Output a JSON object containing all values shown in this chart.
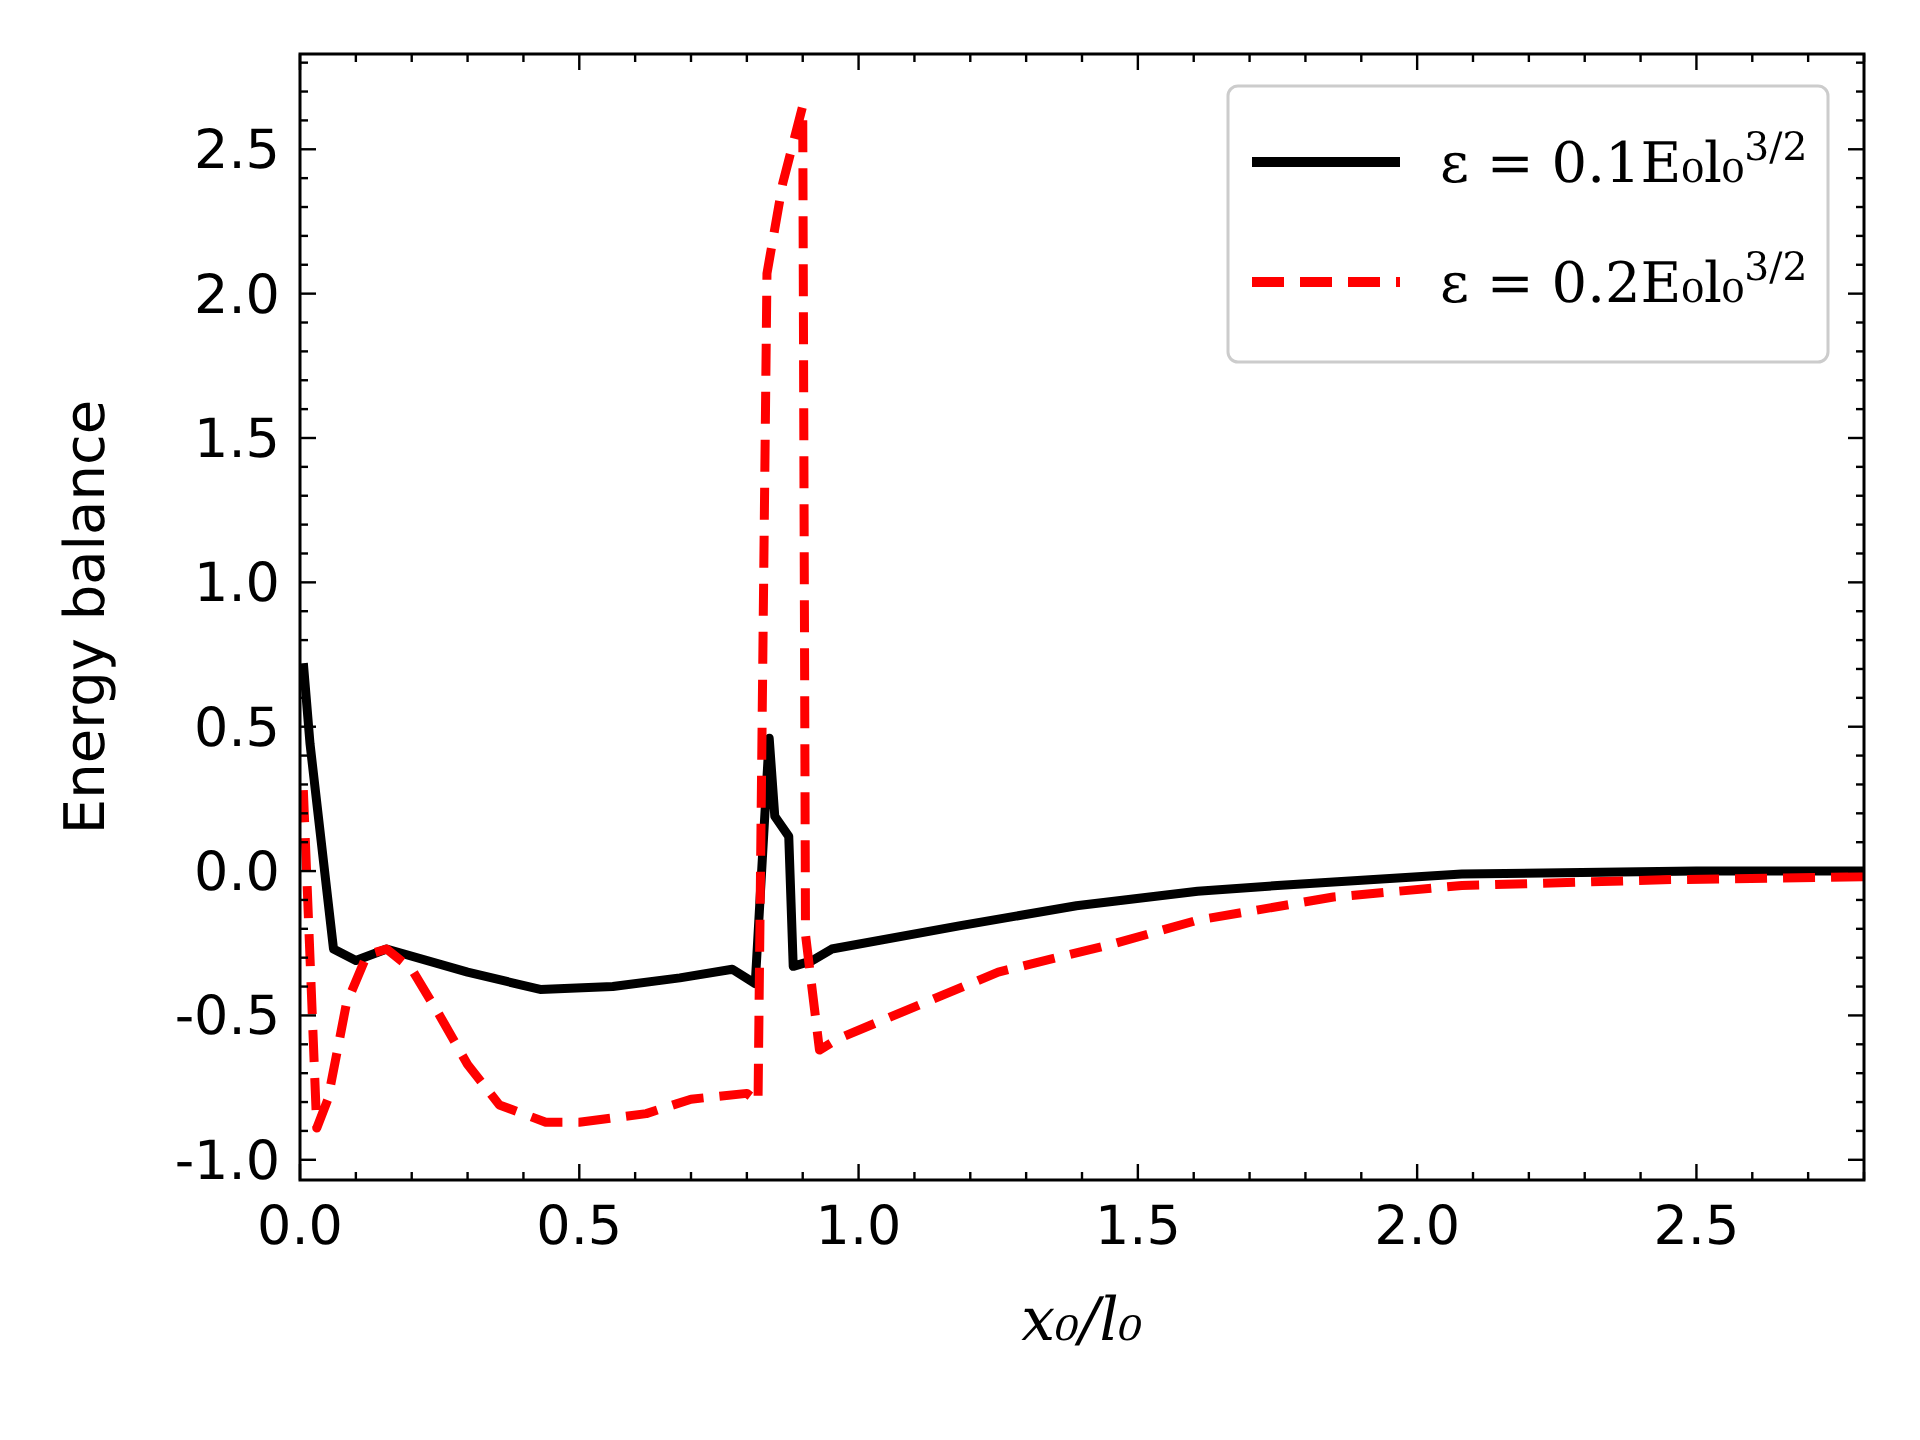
{
  "chart_data": {
    "type": "line",
    "xlabel": "x₀/l₀",
    "ylabel": "Energy balance",
    "xlim": [
      0,
      2.8
    ],
    "ylim": [
      -1.07,
      2.83
    ],
    "xticks": [
      {
        "value": 0,
        "label": "0.0"
      },
      {
        "value": 0.1,
        "label": null
      },
      {
        "value": 0.2,
        "label": null
      },
      {
        "value": 0.3,
        "label": null
      },
      {
        "value": 0.4,
        "label": null
      },
      0.5,
      {
        "value": 0.6,
        "label": null
      },
      {
        "value": 0.7,
        "label": null
      },
      {
        "value": 0.8,
        "label": null
      },
      {
        "value": 0.9,
        "label": null
      },
      {
        "value": 1,
        "label": "1.0"
      },
      {
        "value": 1.1,
        "label": null
      },
      {
        "value": 1.2,
        "label": null
      },
      {
        "value": 1.3,
        "label": null
      },
      {
        "value": 1.4,
        "label": null
      },
      1.5,
      {
        "value": 1.6,
        "label": null
      },
      {
        "value": 1.7,
        "label": null
      },
      {
        "value": 1.8,
        "label": null
      },
      {
        "value": 1.9,
        "label": null
      },
      {
        "value": 2,
        "label": "2.0"
      },
      {
        "value": 2.1,
        "label": null
      },
      {
        "value": 2.2,
        "label": null
      },
      {
        "value": 2.3,
        "label": null
      },
      {
        "value": 2.4,
        "label": null
      },
      2.5,
      {
        "value": 2.6,
        "label": null
      },
      {
        "value": 2.7,
        "label": null
      },
      {
        "value": 2.8,
        "label": null
      }
    ],
    "yticks": [
      {
        "value": -1,
        "label": "-1.0"
      },
      {
        "value": -0.9,
        "label": null
      },
      {
        "value": -0.8,
        "label": null
      },
      {
        "value": -0.7,
        "label": null
      },
      {
        "value": -0.6,
        "label": null
      },
      -0.5,
      {
        "value": -0.4,
        "label": null
      },
      {
        "value": -0.3,
        "label": null
      },
      {
        "value": -0.2,
        "label": null
      },
      {
        "value": -0.1,
        "label": null
      },
      {
        "value": 0,
        "label": "0.0"
      },
      {
        "value": 0.1,
        "label": null
      },
      {
        "value": 0.2,
        "label": null
      },
      {
        "value": 0.3,
        "label": null
      },
      {
        "value": 0.4,
        "label": null
      },
      0.5,
      {
        "value": 0.6,
        "label": null
      },
      {
        "value": 0.7,
        "label": null
      },
      {
        "value": 0.8,
        "label": null
      },
      {
        "value": 0.9,
        "label": null
      },
      {
        "value": 1,
        "label": "1.0"
      },
      {
        "value": 1.1,
        "label": null
      },
      {
        "value": 1.2,
        "label": null
      },
      {
        "value": 1.3,
        "label": null
      },
      {
        "value": 1.4,
        "label": null
      },
      1.5,
      {
        "value": 1.6,
        "label": null
      },
      {
        "value": 1.7,
        "label": null
      },
      {
        "value": 1.8,
        "label": null
      },
      {
        "value": 1.9,
        "label": null
      },
      {
        "value": 2,
        "label": "2.0"
      },
      {
        "value": 2.1,
        "label": null
      },
      {
        "value": 2.2,
        "label": null
      },
      {
        "value": 2.3,
        "label": null
      },
      {
        "value": 2.4,
        "label": null
      },
      2.5,
      {
        "value": 2.6,
        "label": null
      },
      {
        "value": 2.7,
        "label": null
      },
      {
        "value": 2.8,
        "label": null
      }
    ],
    "legend": "top right",
    "grid": false,
    "series": [
      {
        "name": "ε = 0.1E₀l₀$^{3/2}$",
        "color": "#000000",
        "line_style": "solid",
        "x": [
          0.006,
          0.018,
          0.06,
          0.1,
          0.155,
          0.3,
          0.43,
          0.56,
          0.68,
          0.774,
          0.815,
          0.84,
          0.85,
          0.875,
          0.883,
          0.917,
          0.952,
          1.18,
          1.39,
          1.607,
          1.75,
          2.08,
          2.5,
          2.8
        ],
        "values": [
          0.72,
          0.44,
          -0.27,
          -0.31,
          -0.27,
          -0.35,
          -0.41,
          -0.4,
          -0.37,
          -0.34,
          -0.39,
          0.46,
          0.19,
          0.12,
          -0.33,
          -0.31,
          -0.27,
          -0.19,
          -0.12,
          -0.07,
          -0.05,
          -0.01,
          0,
          0
        ]
      },
      {
        "name": "ε = 0.2E₀l₀$^{3/2}$",
        "color": "#ff0000",
        "line_style": "dashed",
        "x": [
          0.006,
          0.03,
          0.05,
          0.083,
          0.12,
          0.155,
          0.2,
          0.25,
          0.3,
          0.357,
          0.44,
          0.5,
          0.62,
          0.7,
          0.8,
          0.82,
          0.836,
          0.864,
          0.9,
          0.905,
          0.93,
          0.964,
          1.25,
          1.46,
          1.607,
          1.85,
          2.08,
          2.44,
          2.8
        ],
        "values": [
          0.28,
          -0.89,
          -0.79,
          -0.46,
          -0.29,
          -0.27,
          -0.34,
          -0.5,
          -0.67,
          -0.81,
          -0.87,
          -0.87,
          -0.84,
          -0.79,
          -0.77,
          -0.8,
          2.07,
          2.38,
          2.65,
          -0.22,
          -0.62,
          -0.58,
          -0.35,
          -0.25,
          -0.17,
          -0.09,
          -0.05,
          -0.03,
          -0.02
        ]
      }
    ]
  }
}
